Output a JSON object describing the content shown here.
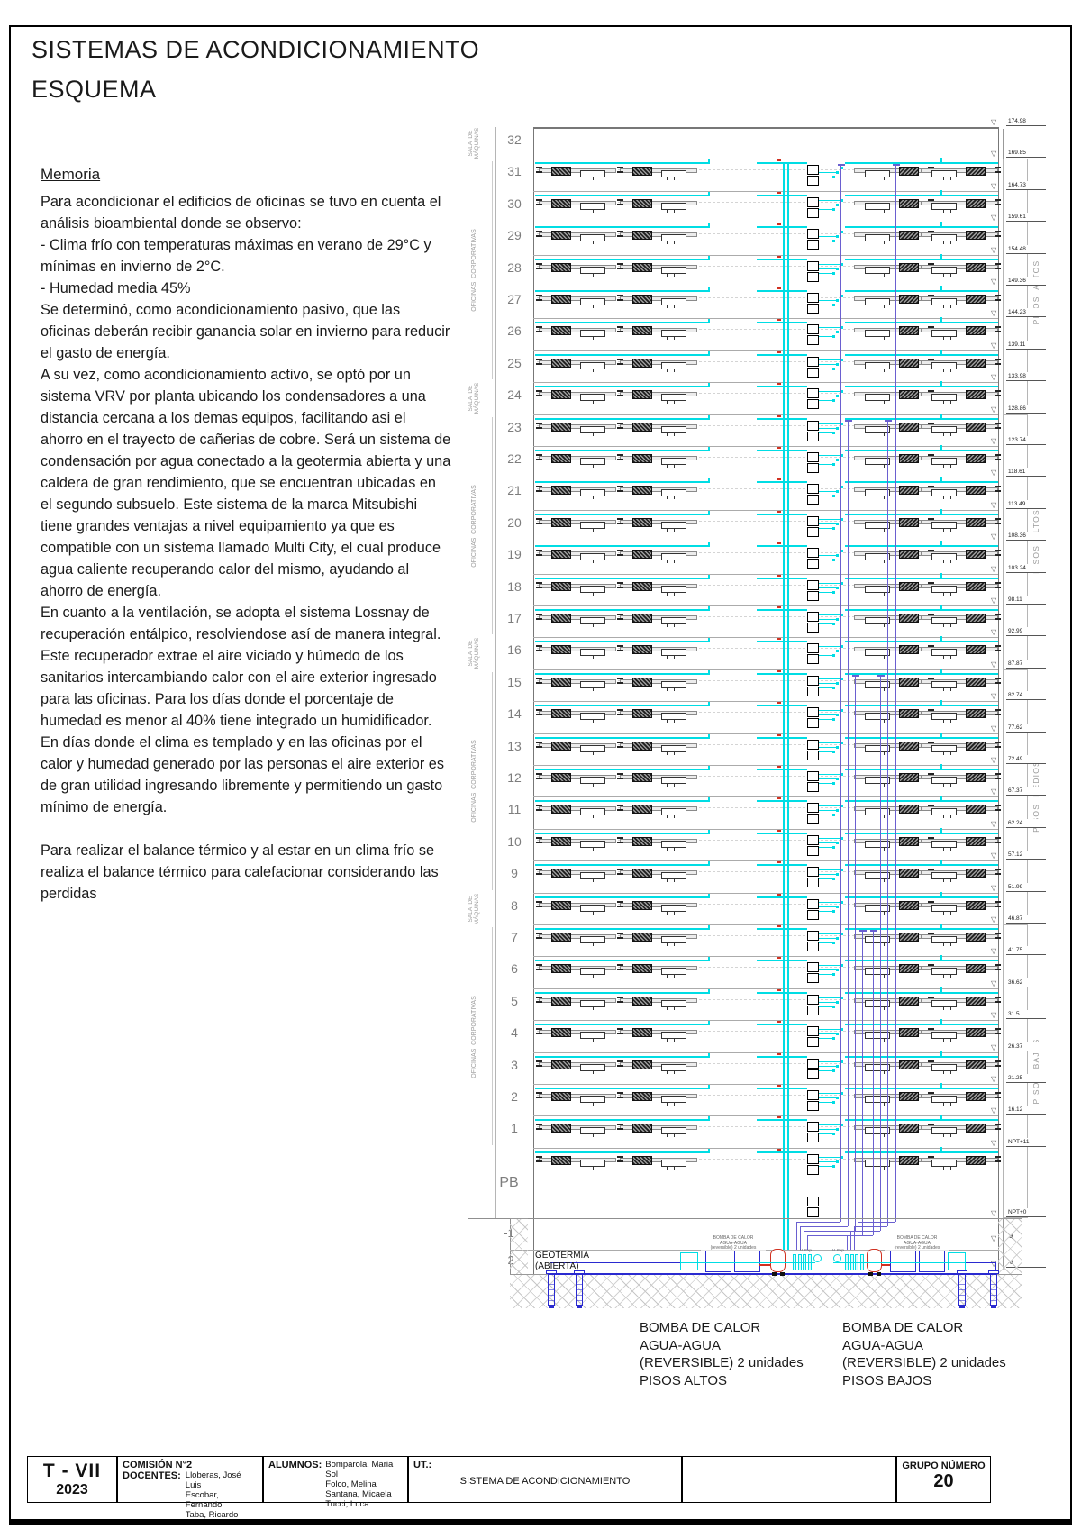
{
  "page": {
    "title_line1": "SISTEMAS DE ACONDICIONAMIENTO",
    "title_line2": "ESQUEMA"
  },
  "memoria": {
    "heading": "Memoria",
    "paragraphs": [
      "Para acondicionar el edificios de oficinas se tuvo en cuenta el análisis bioambiental donde se observo:",
      "-  Clima frío con temperaturas máximas en verano de 29°C y mínimas en invierno de 2°C.",
      "-  Humedad media 45%",
      "Se determinó, como acondicionamiento pasivo, que las oficinas deberán recibir ganancia solar en invierno para reducir el gasto de energía.",
      "A su vez, como acondicionamiento activo, se optó por un sistema VRV por planta ubicando los condensadores a una distancia cercana a los demas equipos, facilitando asi el ahorro en el trayecto de cañerias de cobre.  Será un sistema de condensación por agua conectado a la geotermia abierta y una caldera de gran rendimiento, que se encuentran ubicadas en el segundo subsuelo. Este sistema de la marca Mitsubishi tiene grandes ventajas a nivel equipamiento ya que es compatible con un sistema llamado Multi City, el cual produce agua caliente recuperando calor del mismo, ayudando al ahorro de energía.",
      "En cuanto a la ventilación, se adopta el sistema Lossnay de recuperación entálpico, resolviendose así de manera integral. Este recuperador extrae el aire viciado y húmedo de los sanitarios intercambiando calor con el aire exterior ingresado para las oficinas. Para los días donde el porcentaje de humedad es menor al 40% tiene integrado un humidificador. En días donde el clima es templado y en las oficinas por el calor y humedad generado por las personas el aire exterior es de gran utilidad ingresando libremente y permitiendo un gasto mínimo de energía.",
      "Para realizar el balance térmico y al estar en un clima frío se realiza el balance térmico para calefacionar considerando las perdidas"
    ]
  },
  "diagram": {
    "floor_labels": [
      "32",
      "31",
      "30",
      "29",
      "28",
      "27",
      "26",
      "25",
      "24",
      "23",
      "22",
      "21",
      "20",
      "19",
      "18",
      "17",
      "16",
      "15",
      "14",
      "13",
      "12",
      "11",
      "10",
      "9",
      "8",
      "7",
      "6",
      "5",
      "4",
      "3",
      "2",
      "1"
    ],
    "basement_labels": [
      "PB",
      "-1",
      "-2"
    ],
    "elevations": [
      "174.98",
      "169.85",
      "164.73",
      "159.61",
      "154.48",
      "149.36",
      "144.23",
      "139.11",
      "133.98",
      "128.86",
      "123.74",
      "118.61",
      "113.49",
      "108.36",
      "103.24",
      "98.11",
      "92.99",
      "87.87",
      "82.74",
      "77.62",
      "72.49",
      "67.37",
      "62.24",
      "57.12",
      "51.99",
      "46.87",
      "41.75",
      "36.62",
      "31.5",
      "26.37",
      "21.25",
      "16.12",
      "NPT+11",
      "NPT+0",
      "-4",
      "-8"
    ],
    "zone_machine_label": "SALA  DE\nMÁQUINAS",
    "zone_office_label": "OFICINAS  CORPORATIVAS",
    "right_groups": [
      "PISOS  ALTOS  2",
      "PISOS  ALTOS",
      "PISOS  MEDIOS",
      "PISOS  BAJOS"
    ],
    "geotermia_line1": "GEOTERMIA",
    "geotermia_line2": "(ABIERTA)",
    "pump_unit_label": "BOMBA DE CALOR\nAGUA-AGUA\n(reversible) 2 unidades",
    "vexp_label": "V. Exp.",
    "captions": {
      "left": [
        "BOMBA DE CALOR",
        "AGUA-AGUA",
        "(REVERSIBLE)  2 unidades",
        "PISOS ALTOS"
      ],
      "right": [
        "BOMBA DE CALOR",
        "AGUA-AGUA",
        "(REVERSIBLE) 2 unidades",
        "PISOS BAJOS"
      ]
    }
  },
  "titleblock": {
    "code": "T - VII",
    "year": "2023",
    "comision": "COMISIÓN N°2",
    "docentes_label": "DOCENTES:",
    "docentes": [
      "Lloberas, José Luis",
      "Escobar, Fernando",
      "Taba, Ricardo"
    ],
    "alumnos_label": "ALUMNOS:",
    "alumnos": [
      "Bomparola, Maria Sol",
      "Folco, Melina",
      "Santana, Micaela",
      "Tucci, Luca"
    ],
    "ut_label": "UT.:",
    "ut_value": "SISTEMA DE ACONDICIONAMIENTO",
    "grupo_label": "GRUPO NÚMERO",
    "grupo_value": "20"
  },
  "colors": {
    "cyan": "#00dde4",
    "riser": "#6a5fd0",
    "pipe": "#2a2ad0",
    "red": "#d03020",
    "slab": "#ababab"
  }
}
